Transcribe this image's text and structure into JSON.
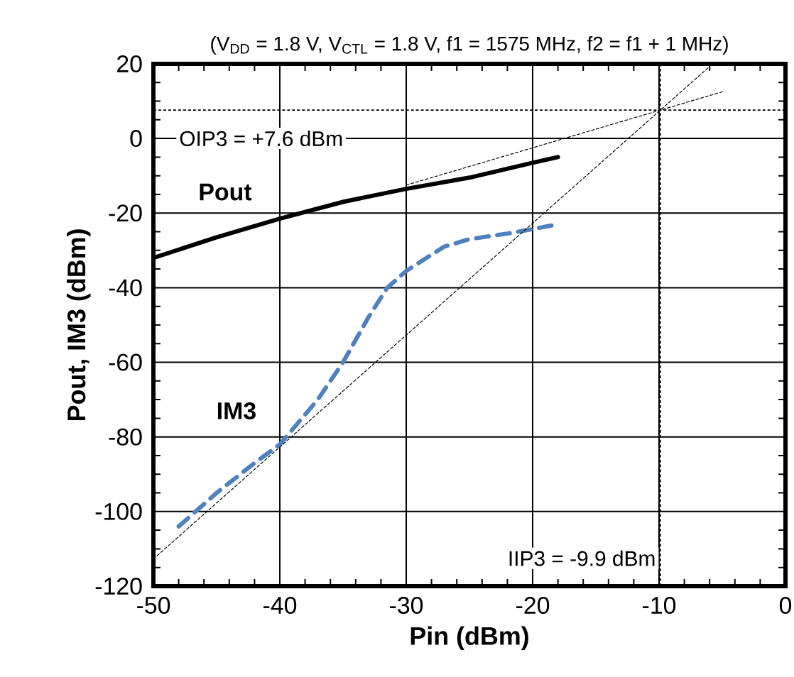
{
  "chart_data": {
    "type": "line",
    "subtitle": "(V$_{DD}$ = 1.8 V, V$_{CTL}$ = 1.8 V, f1 = 1575 MHz, f2 = f1 + 1 MHz)",
    "xlabel": "Pin (dBm)",
    "ylabel": "Pout, IM3 (dBm)",
    "xlim": [
      -50,
      0
    ],
    "xticks": [
      -50,
      -40,
      -30,
      -20,
      -10,
      0
    ],
    "ylim": [
      -120,
      20
    ],
    "yticks": [
      -120,
      -100,
      -80,
      -60,
      -40,
      -20,
      0,
      20
    ],
    "grid": true,
    "series": [
      {
        "name": "Pout",
        "color": "#000000",
        "line_style": "solid",
        "x": [
          -50,
          -45,
          -40,
          -35,
          -30,
          -25,
          -20,
          -18
        ],
        "values": [
          -32,
          -26.5,
          -21.5,
          -17,
          -13.5,
          -10.5,
          -6.5,
          -5
        ]
      },
      {
        "name": "IM3",
        "color": "#4f81bd",
        "line_style": "dashed",
        "x": [
          -48,
          -45,
          -42,
          -40,
          -37,
          -35,
          -33,
          -31.5,
          -30,
          -27,
          -25,
          -22,
          -20,
          -18
        ],
        "values": [
          -104,
          -95,
          -87,
          -82,
          -70,
          -60,
          -48,
          -40,
          -35.5,
          -29,
          -27,
          -25.5,
          -24.3,
          -23
        ]
      },
      {
        "color": "#000000",
        "line_style": "dotted",
        "x": [
          -30,
          -5
        ],
        "values": [
          -12.5,
          12.5
        ]
      },
      {
        "color": "#000000",
        "line_style": "dotted",
        "x": [
          -50,
          -6
        ],
        "values": [
          -112.7,
          19.3
        ]
      }
    ],
    "ref_lines": [
      {
        "axis": "y",
        "value": 7.6,
        "label": "OIP3 = +7.6 dBm",
        "color": "#000000",
        "line_style": "dotted"
      },
      {
        "axis": "x",
        "value": -9.9,
        "label": "IIP3 = -9.9 dBm",
        "color": "#000000",
        "line_style": "dotted"
      }
    ]
  }
}
